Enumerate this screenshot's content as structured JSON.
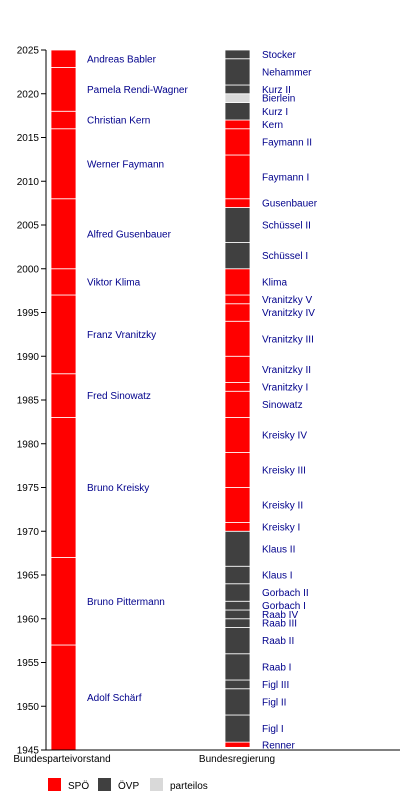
{
  "chart_data": {
    "type": "timeline",
    "ylim": [
      1945,
      2025
    ],
    "y_ticks": [
      1945,
      1950,
      1955,
      1960,
      1965,
      1970,
      1975,
      1980,
      1985,
      1990,
      1995,
      2000,
      2005,
      2010,
      2015,
      2020,
      2025
    ],
    "columns": [
      "Bundesparteivorstand",
      "Bundesregierung"
    ],
    "colors": {
      "spoe": "#ff0000",
      "oevp": "#404040",
      "parteilos": "#d9d9d9",
      "label": "#00008b"
    },
    "legend": [
      {
        "key": "spoe",
        "label": "SPÖ"
      },
      {
        "key": "oevp",
        "label": "ÖVP"
      },
      {
        "key": "parteilos",
        "label": "parteilos"
      }
    ],
    "party_chairs": [
      {
        "label": "Adolf Schärf",
        "start": 1945.0,
        "end": 1957.0,
        "party": "spoe"
      },
      {
        "label": "Bruno Pittermann",
        "start": 1957.0,
        "end": 1967.0,
        "party": "spoe"
      },
      {
        "label": "Bruno Kreisky",
        "start": 1967.0,
        "end": 1983.0,
        "party": "spoe"
      },
      {
        "label": "Fred Sinowatz",
        "start": 1983.0,
        "end": 1988.0,
        "party": "spoe"
      },
      {
        "label": "Franz Vranitzky",
        "start": 1988.0,
        "end": 1997.0,
        "party": "spoe"
      },
      {
        "label": "Viktor Klima",
        "start": 1997.0,
        "end": 2000.0,
        "party": "spoe"
      },
      {
        "label": "Alfred Gusenbauer",
        "start": 2000.0,
        "end": 2008.0,
        "party": "spoe"
      },
      {
        "label": "Werner Faymann",
        "start": 2008.0,
        "end": 2016.0,
        "party": "spoe"
      },
      {
        "label": "Christian Kern",
        "start": 2016.0,
        "end": 2018.0,
        "party": "spoe"
      },
      {
        "label": "Pamela Rendi-Wagner",
        "start": 2018.0,
        "end": 2023.0,
        "party": "spoe"
      },
      {
        "label": "Andreas Babler",
        "start": 2023.0,
        "end": 2025.0,
        "party": "spoe"
      }
    ],
    "governments": [
      {
        "label": "Renner",
        "start": 1945.3,
        "end": 1945.9,
        "party": "spoe"
      },
      {
        "label": "Figl I",
        "start": 1945.9,
        "end": 1949.0,
        "party": "oevp"
      },
      {
        "label": "Figl II",
        "start": 1949.0,
        "end": 1952.0,
        "party": "oevp"
      },
      {
        "label": "Figl III",
        "start": 1952.0,
        "end": 1953.0,
        "party": "oevp"
      },
      {
        "label": "Raab I",
        "start": 1953.0,
        "end": 1956.0,
        "party": "oevp"
      },
      {
        "label": "Raab II",
        "start": 1956.0,
        "end": 1959.0,
        "party": "oevp"
      },
      {
        "label": "Raab III",
        "start": 1959.0,
        "end": 1960.0,
        "party": "oevp"
      },
      {
        "label": "Raab IV",
        "start": 1960.0,
        "end": 1961.0,
        "party": "oevp"
      },
      {
        "label": "Gorbach I",
        "start": 1961.0,
        "end": 1962.0,
        "party": "oevp"
      },
      {
        "label": "Gorbach II",
        "start": 1962.0,
        "end": 1964.0,
        "party": "oevp"
      },
      {
        "label": "Klaus I",
        "start": 1964.0,
        "end": 1966.0,
        "party": "oevp"
      },
      {
        "label": "Klaus II",
        "start": 1966.0,
        "end": 1970.0,
        "party": "oevp"
      },
      {
        "label": "Kreisky I",
        "start": 1970.0,
        "end": 1971.0,
        "party": "spoe"
      },
      {
        "label": "Kreisky II",
        "start": 1971.0,
        "end": 1975.0,
        "party": "spoe"
      },
      {
        "label": "Kreisky III",
        "start": 1975.0,
        "end": 1979.0,
        "party": "spoe"
      },
      {
        "label": "Kreisky IV",
        "start": 1979.0,
        "end": 1983.0,
        "party": "spoe"
      },
      {
        "label": "Sinowatz",
        "start": 1983.0,
        "end": 1986.0,
        "party": "spoe"
      },
      {
        "label": "Vranitzky I",
        "start": 1986.0,
        "end": 1987.0,
        "party": "spoe"
      },
      {
        "label": "Vranitzky II",
        "start": 1987.0,
        "end": 1990.0,
        "party": "spoe"
      },
      {
        "label": "Vranitzky III",
        "start": 1990.0,
        "end": 1994.0,
        "party": "spoe"
      },
      {
        "label": "Vranitzky IV",
        "start": 1994.0,
        "end": 1996.0,
        "party": "spoe"
      },
      {
        "label": "Vranitzky V",
        "start": 1996.0,
        "end": 1997.0,
        "party": "spoe"
      },
      {
        "label": "Klima",
        "start": 1997.0,
        "end": 2000.0,
        "party": "spoe"
      },
      {
        "label": "Schüssel I",
        "start": 2000.0,
        "end": 2003.0,
        "party": "oevp"
      },
      {
        "label": "Schüssel II",
        "start": 2003.0,
        "end": 2007.0,
        "party": "oevp"
      },
      {
        "label": "Gusenbauer",
        "start": 2007.0,
        "end": 2008.0,
        "party": "spoe"
      },
      {
        "label": "Faymann I",
        "start": 2008.0,
        "end": 2013.0,
        "party": "spoe"
      },
      {
        "label": "Faymann II",
        "start": 2013.0,
        "end": 2016.0,
        "party": "spoe"
      },
      {
        "label": "Kern",
        "start": 2016.0,
        "end": 2017.0,
        "party": "spoe"
      },
      {
        "label": "Kurz I",
        "start": 2017.0,
        "end": 2019.0,
        "party": "oevp"
      },
      {
        "label": "Bierlein",
        "start": 2019.0,
        "end": 2020.0,
        "party": "parteilos"
      },
      {
        "label": "Kurz II",
        "start": 2020.0,
        "end": 2021.0,
        "party": "oevp"
      },
      {
        "label": "Nehammer",
        "start": 2021.0,
        "end": 2024.0,
        "party": "oevp"
      },
      {
        "label": "Stocker",
        "start": 2024.0,
        "end": 2025.0,
        "party": "oevp"
      }
    ]
  }
}
